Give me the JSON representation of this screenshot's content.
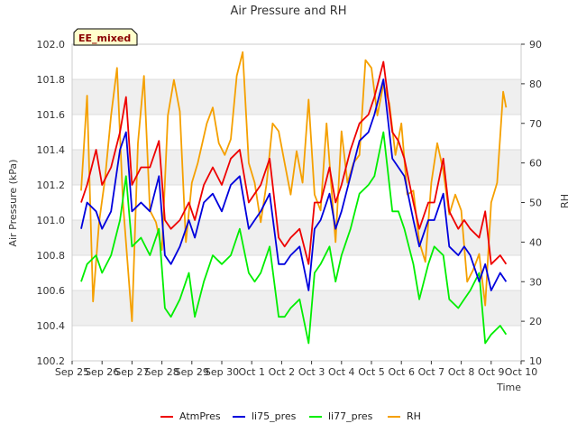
{
  "chart_data": {
    "type": "line",
    "title": "Air Pressure and RH",
    "badge": "EE_mixed",
    "xlabel": "Time",
    "ylabel_left": "Air Pressure (kPa)",
    "ylabel_right": "RH",
    "xlim": [
      0,
      15
    ],
    "ylim_left": [
      100.2,
      102.0
    ],
    "ylim_right": [
      10,
      90
    ],
    "x_tick_labels": [
      "Sep 25",
      "Sep 26",
      "Sep 27",
      "Sep 28",
      "Sep 29",
      "Sep 30",
      "Oct 1",
      "Oct 2",
      "Oct 3",
      "Oct 4",
      "Oct 5",
      "Oct 6",
      "Oct 7",
      "Oct 8",
      "Oct 9",
      "Oct 10"
    ],
    "yticks_left": [
      "100.2",
      "100.4",
      "100.6",
      "100.8",
      "101.0",
      "101.2",
      "101.4",
      "101.6",
      "101.8",
      "102.0"
    ],
    "yticks_right": [
      "10",
      "20",
      "30",
      "40",
      "50",
      "60",
      "70",
      "80",
      "90"
    ],
    "grid": true,
    "legend_position": "bottom",
    "x_unit_note": "x values are days since Sep 25",
    "series": [
      {
        "name": "AtmPres",
        "color": "#ee0000",
        "axis": "left",
        "x": [
          0.3,
          0.5,
          0.8,
          1.0,
          1.3,
          1.6,
          1.8,
          2.0,
          2.3,
          2.6,
          2.9,
          3.1,
          3.3,
          3.6,
          3.9,
          4.1,
          4.4,
          4.7,
          5.0,
          5.3,
          5.6,
          5.9,
          6.1,
          6.3,
          6.6,
          6.9,
          7.1,
          7.3,
          7.6,
          7.9,
          8.1,
          8.3,
          8.6,
          8.8,
          9.0,
          9.3,
          9.6,
          9.9,
          10.1,
          10.4,
          10.7,
          10.9,
          11.1,
          11.4,
          11.6,
          11.9,
          12.1,
          12.4,
          12.6,
          12.9,
          13.1,
          13.3,
          13.6,
          13.8,
          14.0,
          14.3,
          14.5
        ],
        "y": [
          101.1,
          101.2,
          101.4,
          101.2,
          101.3,
          101.5,
          101.7,
          101.2,
          101.3,
          101.3,
          101.45,
          101.0,
          100.95,
          101.0,
          101.1,
          101.0,
          101.2,
          101.3,
          101.2,
          101.35,
          101.4,
          101.1,
          101.15,
          101.2,
          101.35,
          100.9,
          100.85,
          100.9,
          100.95,
          100.75,
          101.1,
          101.1,
          101.3,
          101.1,
          101.2,
          101.4,
          101.55,
          101.6,
          101.7,
          101.9,
          101.5,
          101.45,
          101.35,
          101.1,
          100.95,
          101.1,
          101.1,
          101.35,
          101.05,
          100.95,
          101.0,
          100.95,
          100.9,
          101.05,
          100.75,
          100.8,
          100.75
        ]
      },
      {
        "name": "li75_pres",
        "color": "#0000dd",
        "axis": "left",
        "x": [
          0.3,
          0.5,
          0.8,
          1.0,
          1.3,
          1.6,
          1.8,
          2.0,
          2.3,
          2.6,
          2.9,
          3.1,
          3.3,
          3.6,
          3.9,
          4.1,
          4.4,
          4.7,
          5.0,
          5.3,
          5.6,
          5.9,
          6.1,
          6.3,
          6.6,
          6.9,
          7.1,
          7.3,
          7.6,
          7.9,
          8.1,
          8.3,
          8.6,
          8.8,
          9.0,
          9.3,
          9.6,
          9.9,
          10.1,
          10.4,
          10.7,
          10.9,
          11.1,
          11.4,
          11.6,
          11.9,
          12.1,
          12.4,
          12.6,
          12.9,
          13.1,
          13.3,
          13.6,
          13.8,
          14.0,
          14.3,
          14.5
        ],
        "y": [
          100.95,
          101.1,
          101.05,
          100.95,
          101.05,
          101.4,
          101.5,
          101.05,
          101.1,
          101.05,
          101.25,
          100.8,
          100.75,
          100.85,
          101.0,
          100.9,
          101.1,
          101.15,
          101.05,
          101.2,
          101.25,
          100.95,
          101.0,
          101.05,
          101.15,
          100.75,
          100.75,
          100.8,
          100.85,
          100.6,
          100.95,
          101.0,
          101.15,
          100.95,
          101.05,
          101.25,
          101.45,
          101.5,
          101.6,
          101.8,
          101.35,
          101.3,
          101.25,
          101.0,
          100.85,
          101.0,
          101.0,
          101.15,
          100.85,
          100.8,
          100.85,
          100.8,
          100.65,
          100.75,
          100.6,
          100.7,
          100.65
        ]
      },
      {
        "name": "li77_pres",
        "color": "#00ee00",
        "axis": "left",
        "x": [
          0.3,
          0.5,
          0.8,
          1.0,
          1.3,
          1.6,
          1.8,
          2.0,
          2.3,
          2.6,
          2.9,
          3.1,
          3.3,
          3.6,
          3.9,
          4.1,
          4.4,
          4.7,
          5.0,
          5.3,
          5.6,
          5.9,
          6.1,
          6.3,
          6.6,
          6.9,
          7.1,
          7.3,
          7.6,
          7.9,
          8.1,
          8.3,
          8.6,
          8.8,
          9.0,
          9.3,
          9.6,
          9.9,
          10.1,
          10.4,
          10.7,
          10.9,
          11.1,
          11.4,
          11.6,
          11.9,
          12.1,
          12.4,
          12.6,
          12.9,
          13.1,
          13.3,
          13.6,
          13.8,
          14.0,
          14.3,
          14.5
        ],
        "y": [
          100.65,
          100.75,
          100.8,
          100.7,
          100.8,
          101.0,
          101.25,
          100.85,
          100.9,
          100.8,
          100.95,
          100.5,
          100.45,
          100.55,
          100.7,
          100.45,
          100.65,
          100.8,
          100.75,
          100.8,
          100.95,
          100.7,
          100.65,
          100.7,
          100.85,
          100.45,
          100.45,
          100.5,
          100.55,
          100.3,
          100.7,
          100.75,
          100.85,
          100.65,
          100.8,
          100.95,
          101.15,
          101.2,
          101.25,
          101.5,
          101.05,
          101.05,
          100.95,
          100.75,
          100.55,
          100.75,
          100.85,
          100.8,
          100.55,
          100.5,
          100.55,
          100.6,
          100.7,
          100.3,
          100.35,
          100.4,
          100.35
        ]
      },
      {
        "name": "RH",
        "color": "#f5a000",
        "axis": "right",
        "x": [
          0.3,
          0.5,
          0.7,
          0.9,
          1.1,
          1.3,
          1.5,
          1.7,
          2.0,
          2.2,
          2.4,
          2.6,
          2.8,
          3.0,
          3.2,
          3.4,
          3.6,
          3.8,
          4.0,
          4.2,
          4.5,
          4.7,
          4.9,
          5.1,
          5.3,
          5.5,
          5.7,
          5.9,
          6.1,
          6.3,
          6.5,
          6.7,
          6.9,
          7.1,
          7.3,
          7.5,
          7.7,
          7.9,
          8.1,
          8.3,
          8.5,
          8.8,
          9.0,
          9.2,
          9.4,
          9.6,
          9.8,
          10.0,
          10.2,
          10.4,
          10.6,
          10.8,
          11.0,
          11.2,
          11.4,
          11.6,
          11.8,
          12.0,
          12.2,
          12.4,
          12.6,
          12.8,
          13.0,
          13.2,
          13.4,
          13.6,
          13.8,
          14.0,
          14.2,
          14.4,
          14.5
        ],
        "y": [
          53,
          77,
          25,
          45,
          56,
          72,
          84,
          50,
          20,
          65,
          82,
          48,
          45,
          38,
          72,
          81,
          73,
          40,
          55,
          60,
          70,
          74,
          65,
          62,
          66,
          82,
          88,
          60,
          55,
          45,
          55,
          70,
          68,
          60,
          52,
          63,
          55,
          76,
          52,
          48,
          70,
          40,
          68,
          55,
          60,
          62,
          86,
          84,
          72,
          80,
          75,
          62,
          70,
          52,
          53,
          40,
          35,
          55,
          65,
          58,
          47,
          52,
          48,
          30,
          33,
          37,
          24,
          50,
          55,
          78,
          74
        ]
      }
    ]
  }
}
